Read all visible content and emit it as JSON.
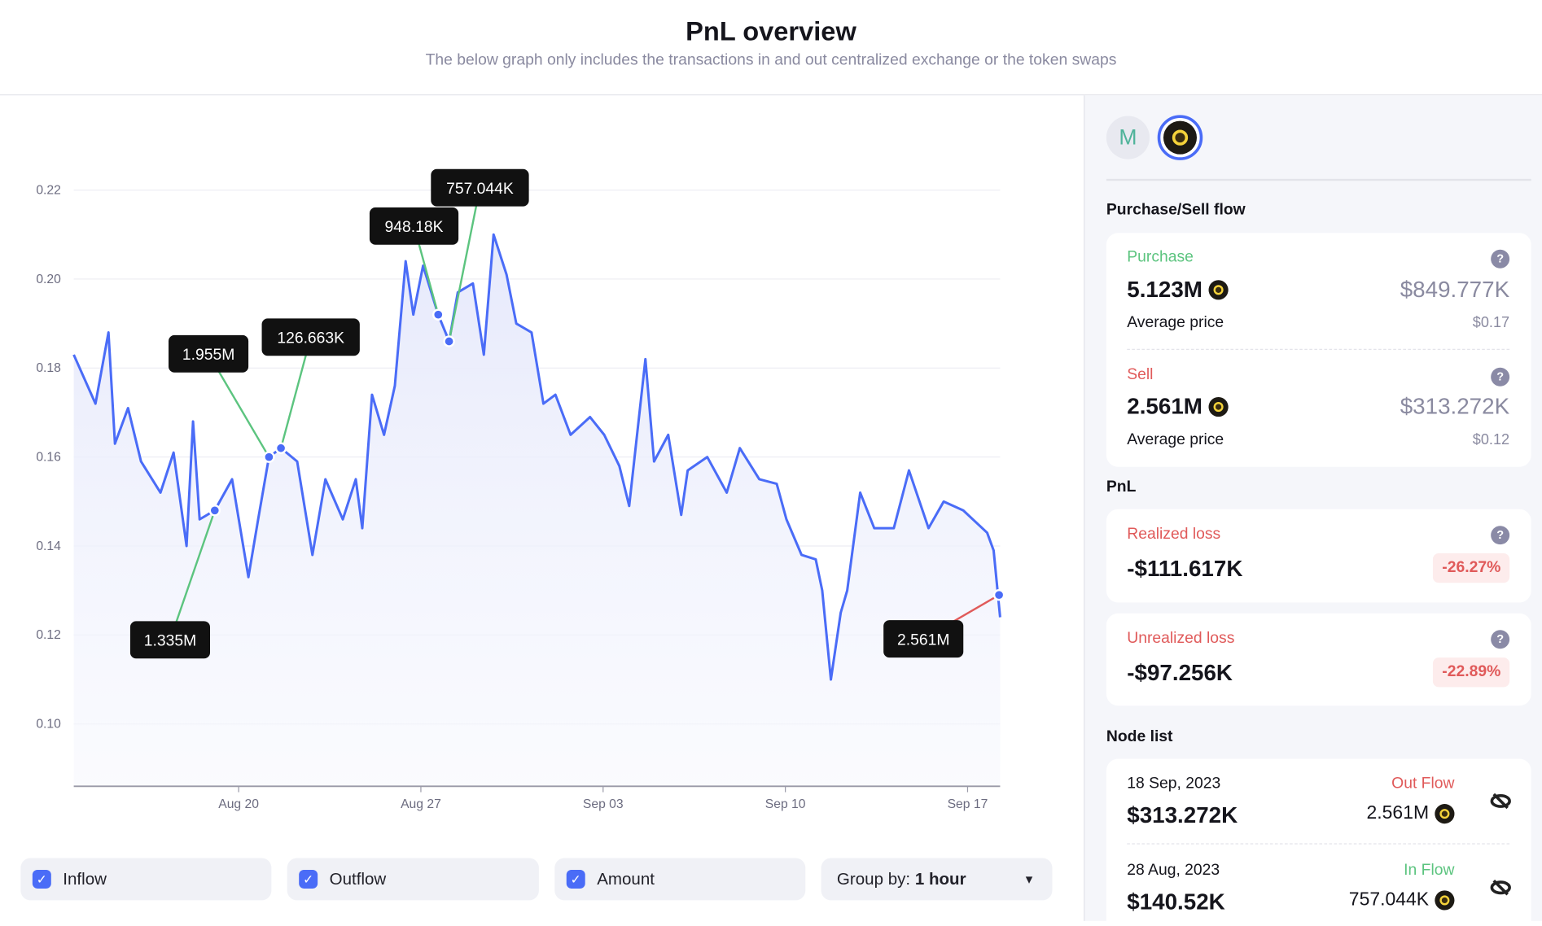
{
  "header": {
    "title": "PnL overview",
    "subtitle": "The below graph only includes the transactions in and out centralized exchange or the token swaps"
  },
  "colors": {
    "line": "#4a6cf7",
    "inflow": "#5cc47f",
    "outflow": "#e05a5a",
    "accent": "#4a6cf7"
  },
  "chart_data": {
    "type": "line",
    "title": "",
    "xlabel": "",
    "ylabel": "",
    "ylim": [
      0.086,
      0.234
    ],
    "xlim": [
      "2023-08-13T16:00",
      "2023-09-18T06:00"
    ],
    "grid": true,
    "yticks": [
      "0.10",
      "0.12",
      "0.14",
      "0.16",
      "0.18",
      "0.20",
      "0.22"
    ],
    "xticks": [
      {
        "label": "Aug 20",
        "date": "2023-08-20T00:00"
      },
      {
        "label": "Aug 27",
        "date": "2023-08-27T00:00"
      },
      {
        "label": "Sep 03",
        "date": "2023-09-03T00:00"
      },
      {
        "label": "Sep 10",
        "date": "2023-09-10T00:00"
      },
      {
        "label": "Sep 17",
        "date": "2023-09-17T00:00"
      }
    ],
    "series": [
      {
        "points": [
          [
            "2023-08-13T16:00",
            0.183
          ],
          [
            "2023-08-14T12:00",
            0.172
          ],
          [
            "2023-08-15T00:00",
            0.188
          ],
          [
            "2023-08-15T06:00",
            0.163
          ],
          [
            "2023-08-15T18:00",
            0.171
          ],
          [
            "2023-08-16T06:00",
            0.159
          ],
          [
            "2023-08-17T00:00",
            0.152
          ],
          [
            "2023-08-17T12:00",
            0.161
          ],
          [
            "2023-08-18T00:00",
            0.14
          ],
          [
            "2023-08-18T06:00",
            0.168
          ],
          [
            "2023-08-18T12:00",
            0.146
          ],
          [
            "2023-08-19T02:00",
            0.148
          ],
          [
            "2023-08-19T18:00",
            0.155
          ],
          [
            "2023-08-20T09:00",
            0.133
          ],
          [
            "2023-08-20T18:00",
            0.146
          ],
          [
            "2023-08-21T04:00",
            0.16
          ],
          [
            "2023-08-21T15:00",
            0.162
          ],
          [
            "2023-08-22T06:00",
            0.159
          ],
          [
            "2023-08-22T20:00",
            0.138
          ],
          [
            "2023-08-23T08:00",
            0.155
          ],
          [
            "2023-08-24T00:00",
            0.146
          ],
          [
            "2023-08-24T12:00",
            0.155
          ],
          [
            "2023-08-24T18:00",
            0.144
          ],
          [
            "2023-08-25T03:00",
            0.174
          ],
          [
            "2023-08-25T14:00",
            0.165
          ],
          [
            "2023-08-26T00:00",
            0.176
          ],
          [
            "2023-08-26T10:00",
            0.204
          ],
          [
            "2023-08-26T17:00",
            0.192
          ],
          [
            "2023-08-27T02:00",
            0.203
          ],
          [
            "2023-08-27T16:00",
            0.192
          ],
          [
            "2023-08-28T02:00",
            0.186
          ],
          [
            "2023-08-28T10:00",
            0.197
          ],
          [
            "2023-08-29T00:00",
            0.199
          ],
          [
            "2023-08-29T10:00",
            0.183
          ],
          [
            "2023-08-29T19:00",
            0.21
          ],
          [
            "2023-08-30T07:00",
            0.201
          ],
          [
            "2023-08-30T16:00",
            0.19
          ],
          [
            "2023-08-31T06:00",
            0.188
          ],
          [
            "2023-08-31T17:00",
            0.172
          ],
          [
            "2023-09-01T04:00",
            0.174
          ],
          [
            "2023-09-01T18:00",
            0.165
          ],
          [
            "2023-09-02T12:00",
            0.169
          ],
          [
            "2023-09-03T01:00",
            0.165
          ],
          [
            "2023-09-03T15:00",
            0.158
          ],
          [
            "2023-09-04T00:00",
            0.149
          ],
          [
            "2023-09-04T15:00",
            0.182
          ],
          [
            "2023-09-04T23:00",
            0.159
          ],
          [
            "2023-09-05T12:00",
            0.165
          ],
          [
            "2023-09-06T00:00",
            0.147
          ],
          [
            "2023-09-06T06:00",
            0.157
          ],
          [
            "2023-09-07T00:00",
            0.16
          ],
          [
            "2023-09-07T18:00",
            0.152
          ],
          [
            "2023-09-08T06:00",
            0.162
          ],
          [
            "2023-09-09T00:00",
            0.155
          ],
          [
            "2023-09-09T16:00",
            0.154
          ],
          [
            "2023-09-10T01:00",
            0.146
          ],
          [
            "2023-09-10T15:00",
            0.138
          ],
          [
            "2023-09-11T04:00",
            0.137
          ],
          [
            "2023-09-11T10:00",
            0.13
          ],
          [
            "2023-09-11T18:00",
            0.11
          ],
          [
            "2023-09-12T03:00",
            0.125
          ],
          [
            "2023-09-12T09:00",
            0.13
          ],
          [
            "2023-09-12T21:00",
            0.152
          ],
          [
            "2023-09-13T10:00",
            0.144
          ],
          [
            "2023-09-14T04:00",
            0.144
          ],
          [
            "2023-09-14T18:00",
            0.157
          ],
          [
            "2023-09-15T12:00",
            0.144
          ],
          [
            "2023-09-16T02:00",
            0.15
          ],
          [
            "2023-09-16T20:00",
            0.148
          ],
          [
            "2023-09-17T18:00",
            0.143
          ],
          [
            "2023-09-18T00:00",
            0.139
          ],
          [
            "2023-09-18T06:00",
            0.124
          ]
        ]
      }
    ],
    "annotations": [
      {
        "label": "1.335M",
        "date": "2023-08-19T02:00",
        "price": 0.148,
        "flow": "in"
      },
      {
        "label": "1.955M",
        "date": "2023-08-21T04:00",
        "price": 0.16,
        "flow": "in"
      },
      {
        "label": "126.663K",
        "date": "2023-08-21T15:00",
        "price": 0.162,
        "flow": "in"
      },
      {
        "label": "948.18K",
        "date": "2023-08-27T16:00",
        "price": 0.192,
        "flow": "in"
      },
      {
        "label": "757.044K",
        "date": "2023-08-28T02:00",
        "price": 0.186,
        "flow": "in"
      },
      {
        "label": "2.561M",
        "date": "2023-09-18T05:00",
        "price": 0.129,
        "flow": "out"
      }
    ]
  },
  "controls": {
    "inflow": "Inflow",
    "outflow": "Outflow",
    "amount": "Amount",
    "group_prefix": "Group by:",
    "group_value": "1 hour",
    "check": "✓",
    "dropdown": "▾"
  },
  "panel": {
    "tokens": [
      {
        "name": "maker-token-icon",
        "glyph": "M"
      },
      {
        "name": "coin-token-icon"
      }
    ],
    "flow_title": "Purchase/Sell flow",
    "purchase": {
      "label": "Purchase",
      "amount": "5.123M",
      "value": "$849.777K",
      "avg_label": "Average price",
      "avg": "$0.17"
    },
    "sell": {
      "label": "Sell",
      "amount": "2.561M",
      "value": "$313.272K",
      "avg_label": "Average price",
      "avg": "$0.12"
    },
    "pnl_title": "PnL",
    "realized": {
      "label": "Realized loss",
      "value": "-$111.617K",
      "pct": "-26.27%"
    },
    "unrealized": {
      "label": "Unrealized loss",
      "value": "-$97.256K",
      "pct": "-22.89%"
    },
    "help": "?",
    "node_title": "Node list",
    "nodes": [
      {
        "date": "18 Sep, 2023",
        "value": "$313.272K",
        "flow": "Out Flow",
        "amount": "2.561M"
      },
      {
        "date": "28 Aug, 2023",
        "value": "$140.52K",
        "flow": "In Flow",
        "amount": "757.044K"
      }
    ]
  }
}
